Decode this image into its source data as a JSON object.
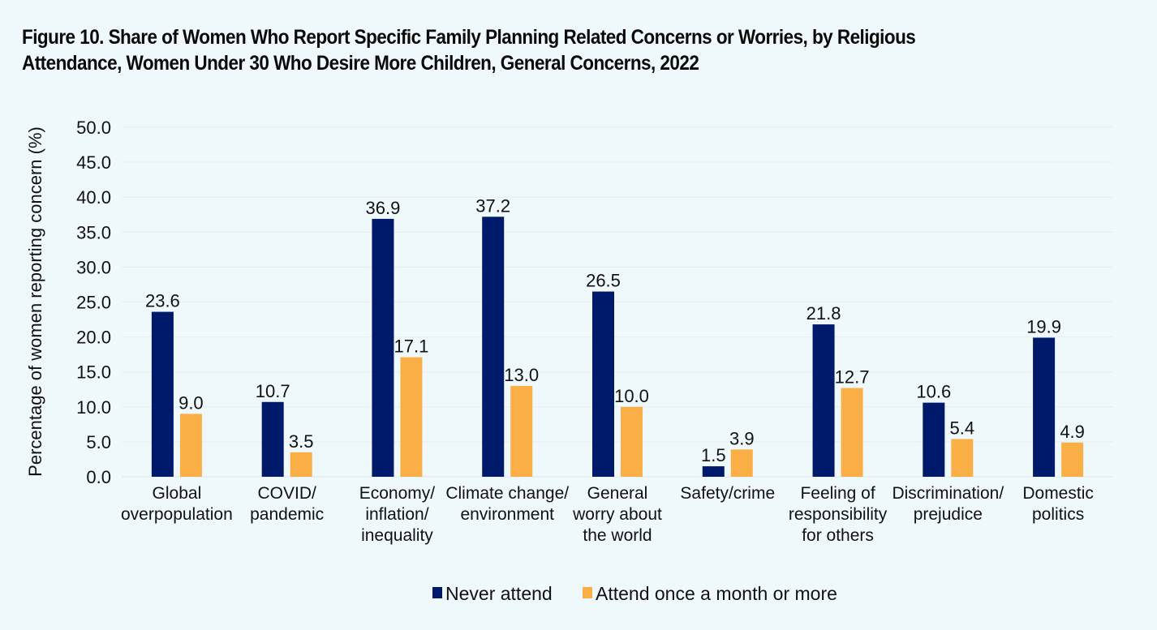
{
  "chart_data": {
    "type": "bar",
    "title_lines": [
      "Figure 10. Share of Women Who Report Specific Family Planning Related Concerns or Worries, by Religious",
      "Attendance, Women Under 30 Who Desire More Children, General Concerns, 2022"
    ],
    "xlabel": "",
    "ylabel": "Percentage of women reporting concern (%)",
    "ylim": [
      0,
      50
    ],
    "yticks": [
      "0.0",
      "5.0",
      "10.0",
      "15.0",
      "20.0",
      "25.0",
      "30.0",
      "35.0",
      "40.0",
      "45.0",
      "50.0"
    ],
    "grid": true,
    "legend_position": "bottom-center",
    "categories": [
      [
        "Global",
        "overpopulation"
      ],
      [
        "COVID/",
        "pandemic"
      ],
      [
        "Economy/",
        "inflation/",
        "inequality"
      ],
      [
        "Climate change/",
        "environment"
      ],
      [
        "General",
        "worry about",
        "the world"
      ],
      [
        "Safety/crime"
      ],
      [
        "Feeling of",
        "responsibility",
        "for others"
      ],
      [
        "Discrimination/",
        "prejudice"
      ],
      [
        "Domestic",
        "politics"
      ]
    ],
    "series": [
      {
        "name": "Never attend",
        "color": "#001a6b",
        "values": [
          23.6,
          10.7,
          36.9,
          37.2,
          26.5,
          1.5,
          21.8,
          10.6,
          19.9
        ]
      },
      {
        "name": "Attend once a month or more",
        "color": "#f9af45",
        "values": [
          9.0,
          3.5,
          17.1,
          13.0,
          10.0,
          3.9,
          12.7,
          5.4,
          4.9
        ]
      }
    ]
  }
}
